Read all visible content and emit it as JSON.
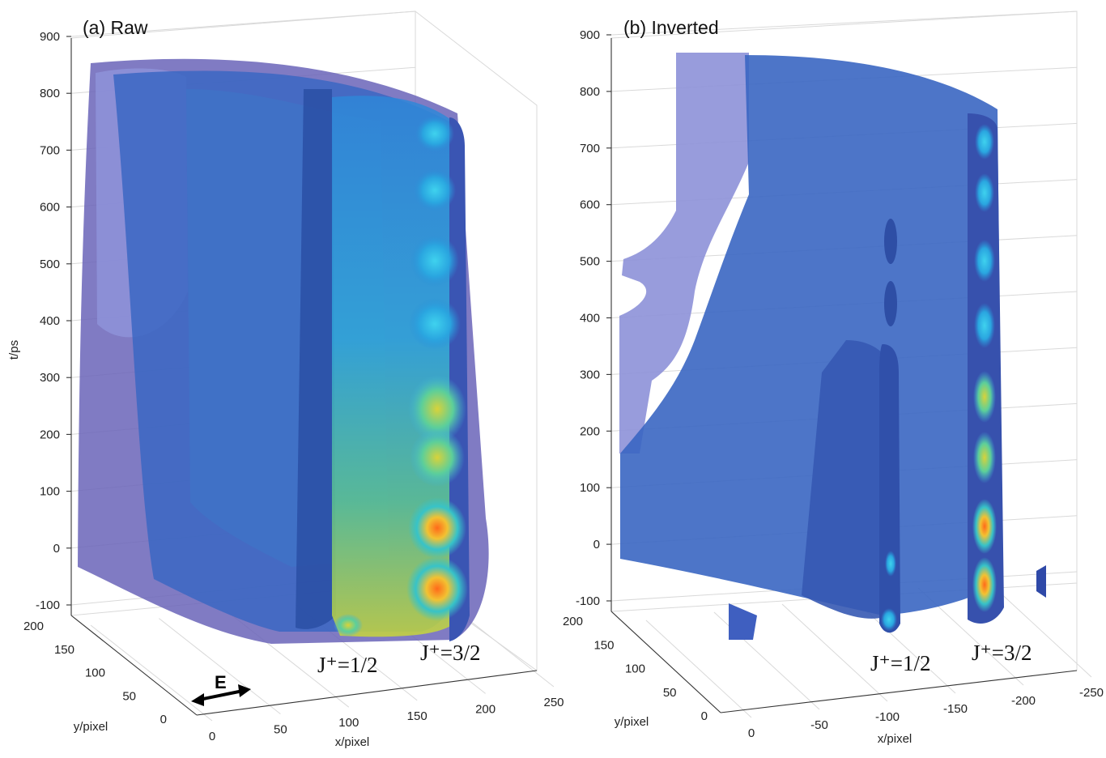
{
  "chart_data": [
    {
      "type": "3d-isosurface",
      "title": "(a) Raw",
      "zlabel": "t/ps",
      "xlabel": "x/pixel",
      "ylabel": "y/pixel",
      "zticks": [
        "900",
        "800",
        "700",
        "600",
        "500",
        "400",
        "300",
        "200",
        "100",
        "0",
        "-100"
      ],
      "xticks": [
        "0",
        "50",
        "100",
        "150",
        "200",
        "250"
      ],
      "yticks": [
        "200",
        "150",
        "100",
        "50",
        "0"
      ],
      "zlim": [
        -100,
        900
      ],
      "xlim": [
        0,
        250
      ],
      "ylim": [
        0,
        200
      ],
      "annotations": [
        {
          "text": "J⁺=1/2"
        },
        {
          "text": "J⁺=3/2"
        },
        {
          "text": "E"
        }
      ]
    },
    {
      "type": "3d-isosurface",
      "title": "(b) Inverted",
      "zlabel": "",
      "xlabel": "x/pixel",
      "ylabel": "y/pixel",
      "zticks": [
        "900",
        "800",
        "700",
        "600",
        "500",
        "400",
        "300",
        "200",
        "100",
        "0",
        "-100"
      ],
      "xticks": [
        "0",
        "-50",
        "-100",
        "-150",
        "-200",
        "-250"
      ],
      "yticks": [
        "200",
        "150",
        "100",
        "50",
        "0"
      ],
      "zlim": [
        -100,
        900
      ],
      "xlim": [
        0,
        -250
      ],
      "ylim": [
        0,
        200
      ],
      "annotations": [
        {
          "text": "J⁺=1/2"
        },
        {
          "text": "J⁺=3/2"
        }
      ]
    }
  ]
}
